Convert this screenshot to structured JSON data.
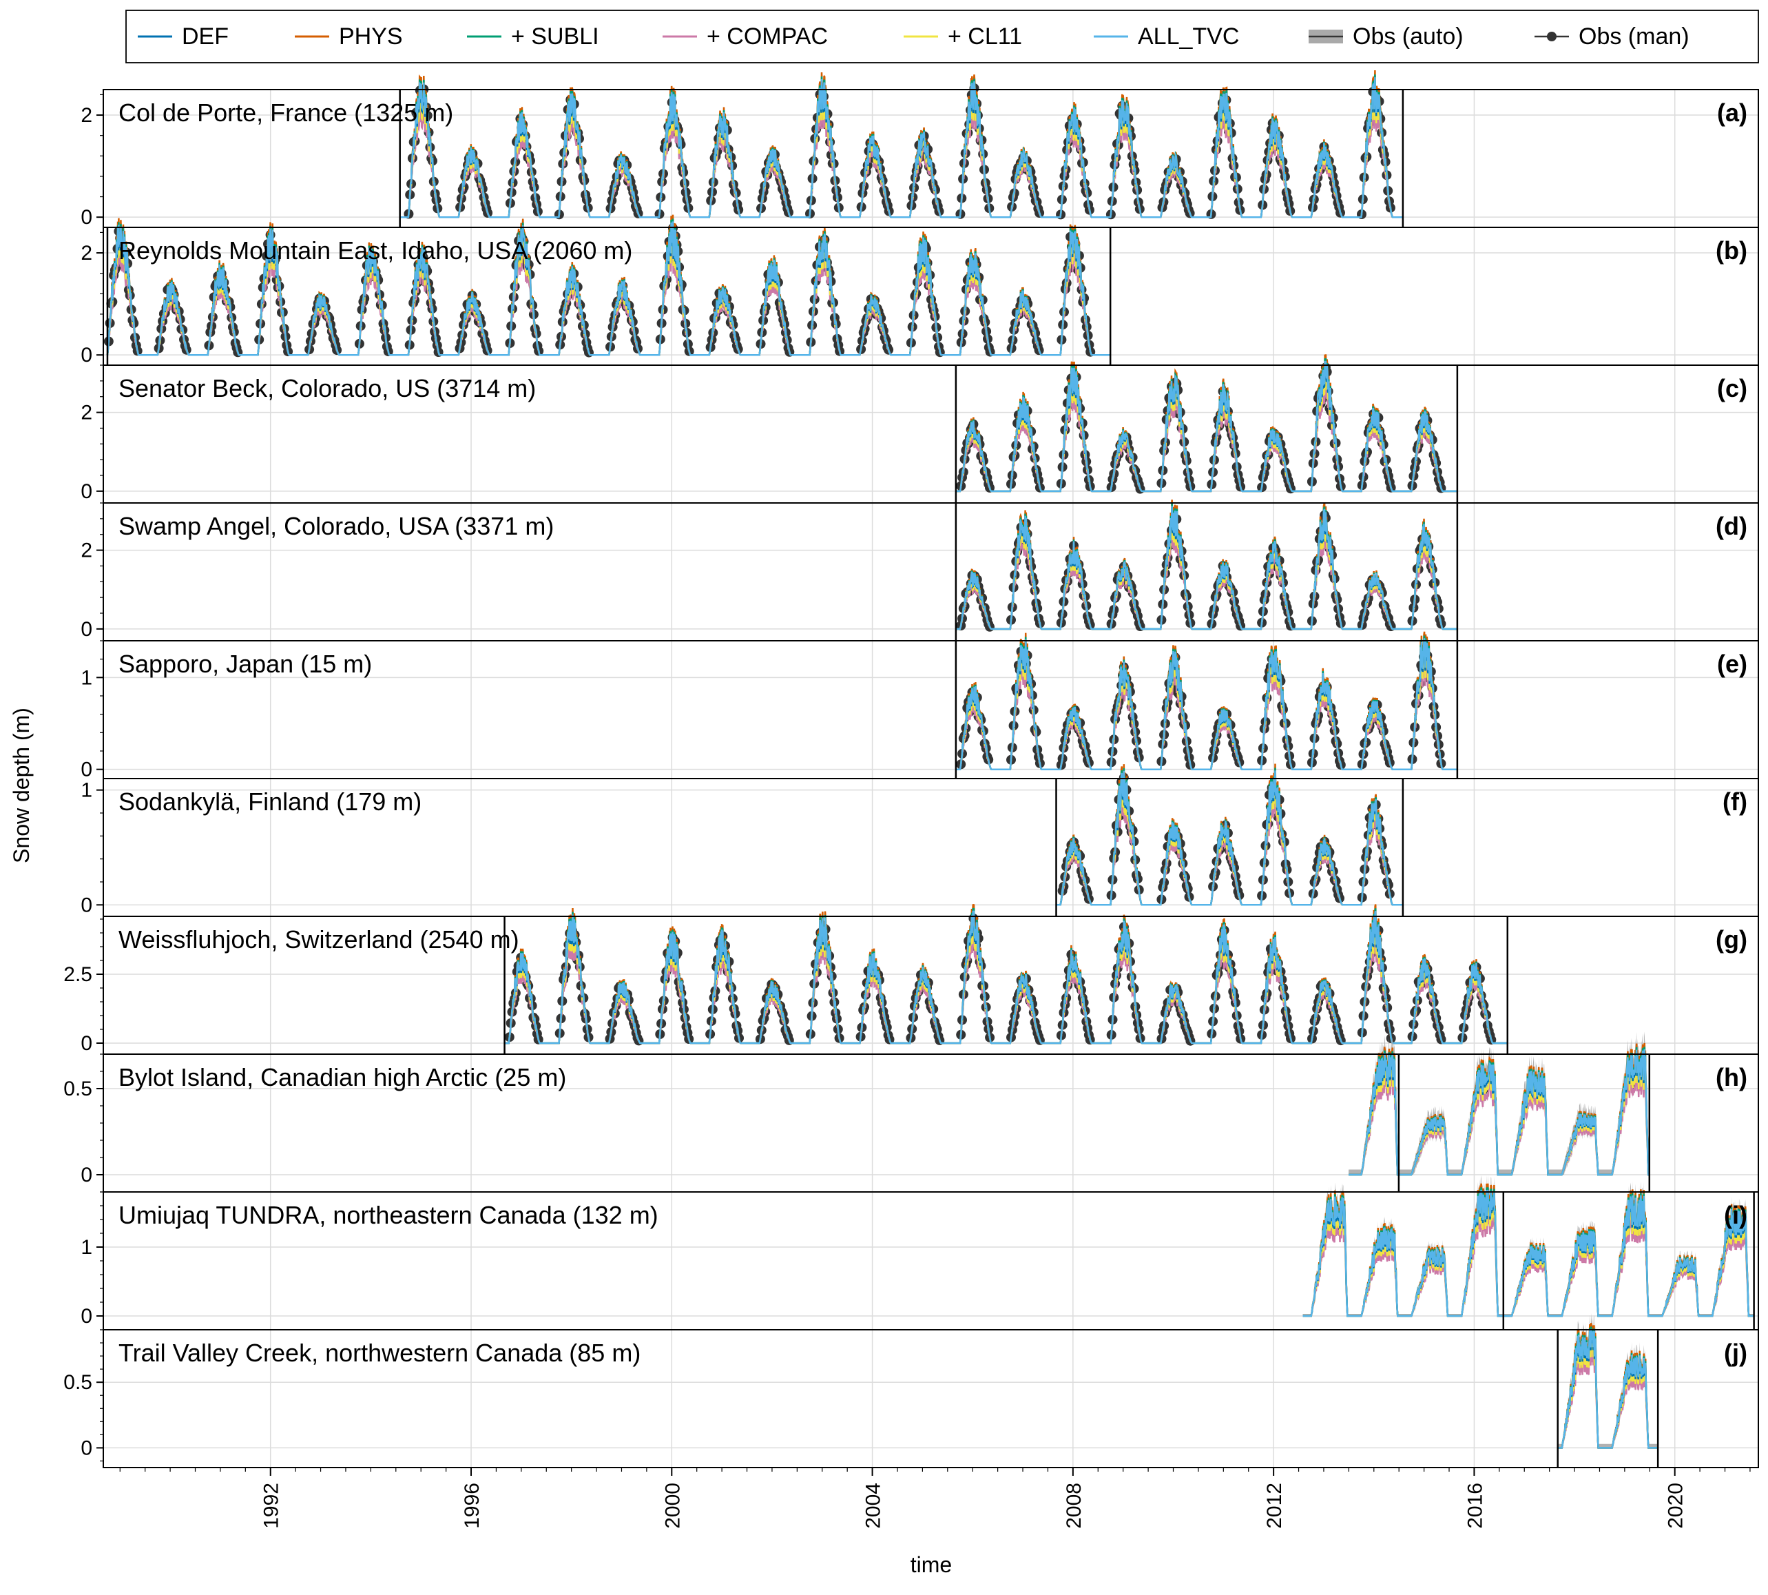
{
  "figure": {
    "legend": [
      {
        "label": "DEF",
        "color": "#0072b2",
        "kind": "line"
      },
      {
        "label": "PHYS",
        "color": "#d55e00",
        "kind": "line"
      },
      {
        "label": "+ SUBLI",
        "color": "#009e73",
        "kind": "line"
      },
      {
        "label": "+ COMPAC",
        "color": "#cc79a7",
        "kind": "line"
      },
      {
        "label": "+ CL11",
        "color": "#f0e442",
        "kind": "line"
      },
      {
        "label": "ALL_TVC",
        "color": "#56b4e9",
        "kind": "line"
      },
      {
        "label": "Obs (auto)",
        "color": "#a9a9a9",
        "edge": "#333333",
        "kind": "band"
      },
      {
        "label": "Obs (man)",
        "color": "#333333",
        "kind": "marker"
      }
    ],
    "ylabel": "Snow depth (m)",
    "xlabel": "time",
    "xticks": [
      "1992",
      "1996",
      "2000",
      "2004",
      "2008",
      "2012",
      "2016",
      "2020"
    ]
  },
  "chart_data": [
    {
      "type": "line",
      "panel": "(a)",
      "title": "Col de Porte, France (1325 m)",
      "ylim": [
        -0.2,
        2.5
      ],
      "yticks": [
        "0",
        "2"
      ],
      "x_range": [
        "1988-09-01",
        "2021-09-01"
      ],
      "period": [
        "1994-08-01",
        "2014-07-31"
      ],
      "peak_max_m": 2.4,
      "auto_obs": false
    },
    {
      "type": "line",
      "panel": "(b)",
      "title": "Reynolds Mountain East, Idaho, USA (2060 m)",
      "ylim": [
        -0.2,
        2.5
      ],
      "yticks": [
        "0",
        "2"
      ],
      "x_range": [
        "1988-09-01",
        "2021-09-01"
      ],
      "period": [
        "1988-10-01",
        "2008-09-30"
      ],
      "peak_max_m": 2.3,
      "auto_obs": false
    },
    {
      "type": "line",
      "panel": "(c)",
      "title": "Senator Beck, Colorado, US (3714 m)",
      "ylim": [
        -0.3,
        3.2
      ],
      "yticks": [
        "0",
        "2"
      ],
      "x_range": [
        "1988-09-01",
        "2021-09-01"
      ],
      "period": [
        "2005-09-01",
        "2015-08-31"
      ],
      "peak_max_m": 3.0,
      "auto_obs": false
    },
    {
      "type": "line",
      "panel": "(d)",
      "title": "Swamp Angel, Colorado, USA (3371 m)",
      "ylim": [
        -0.3,
        3.2
      ],
      "yticks": [
        "0",
        "2"
      ],
      "x_range": [
        "1988-09-01",
        "2021-09-01"
      ],
      "period": [
        "2005-09-01",
        "2015-08-31"
      ],
      "peak_max_m": 2.8,
      "auto_obs": false
    },
    {
      "type": "line",
      "panel": "(e)",
      "title": "Sapporo, Japan (15 m)",
      "ylim": [
        -0.1,
        1.4
      ],
      "yticks": [
        "0",
        "1"
      ],
      "x_range": [
        "1988-09-01",
        "2021-09-01"
      ],
      "period": [
        "2005-09-01",
        "2015-08-31"
      ],
      "peak_max_m": 1.3,
      "auto_obs": false
    },
    {
      "type": "line",
      "panel": "(f)",
      "title": "Sodankylä, Finland (179 m)",
      "ylim": [
        -0.1,
        1.1
      ],
      "yticks": [
        "0",
        "1"
      ],
      "x_range": [
        "1988-09-01",
        "2021-09-01"
      ],
      "period": [
        "2007-09-01",
        "2014-07-31"
      ],
      "peak_max_m": 1.05,
      "auto_obs": false
    },
    {
      "type": "line",
      "panel": "(g)",
      "title": "Weissfluhjoch, Switzerland (2540 m)",
      "ylim": [
        -0.4,
        4.6
      ],
      "yticks": [
        "0",
        "2.5"
      ],
      "x_range": [
        "1988-09-01",
        "2021-09-01"
      ],
      "period": [
        "1996-09-01",
        "2016-08-31"
      ],
      "peak_max_m": 4.3,
      "auto_obs": false
    },
    {
      "type": "line",
      "panel": "(h)",
      "title": "Bylot Island, Canadian high Arctic (25 m)",
      "ylim": [
        -0.1,
        0.7
      ],
      "yticks": [
        "0",
        "0.5"
      ],
      "x_range": [
        "1988-09-01",
        "2021-09-01"
      ],
      "period": [
        "2014-07-01",
        "2019-06-30"
      ],
      "spinup_start": "2013-07-01",
      "peak_max_m": 0.65,
      "auto_obs": true
    },
    {
      "type": "line",
      "panel": "(i)",
      "title": "Umiujaq TUNDRA, northeastern Canada (132 m)",
      "ylim": [
        -0.2,
        1.8
      ],
      "yticks": [
        "0",
        "1"
      ],
      "x_range": [
        "1988-09-01",
        "2021-09-01"
      ],
      "period": [
        "2016-08-01",
        "2021-07-31"
      ],
      "spinup_start": "2012-08-01",
      "peak_max_m": 1.6,
      "auto_obs": true
    },
    {
      "type": "line",
      "panel": "(j)",
      "title": "Trail Valley Creek, northwestern Canada (85 m)",
      "ylim": [
        -0.15,
        0.9
      ],
      "yticks": [
        "0",
        "0.5"
      ],
      "x_range": [
        "1988-09-01",
        "2021-09-01"
      ],
      "period": [
        "2017-09-01",
        "2019-08-31"
      ],
      "peak_max_m": 0.85,
      "auto_obs": true
    }
  ]
}
